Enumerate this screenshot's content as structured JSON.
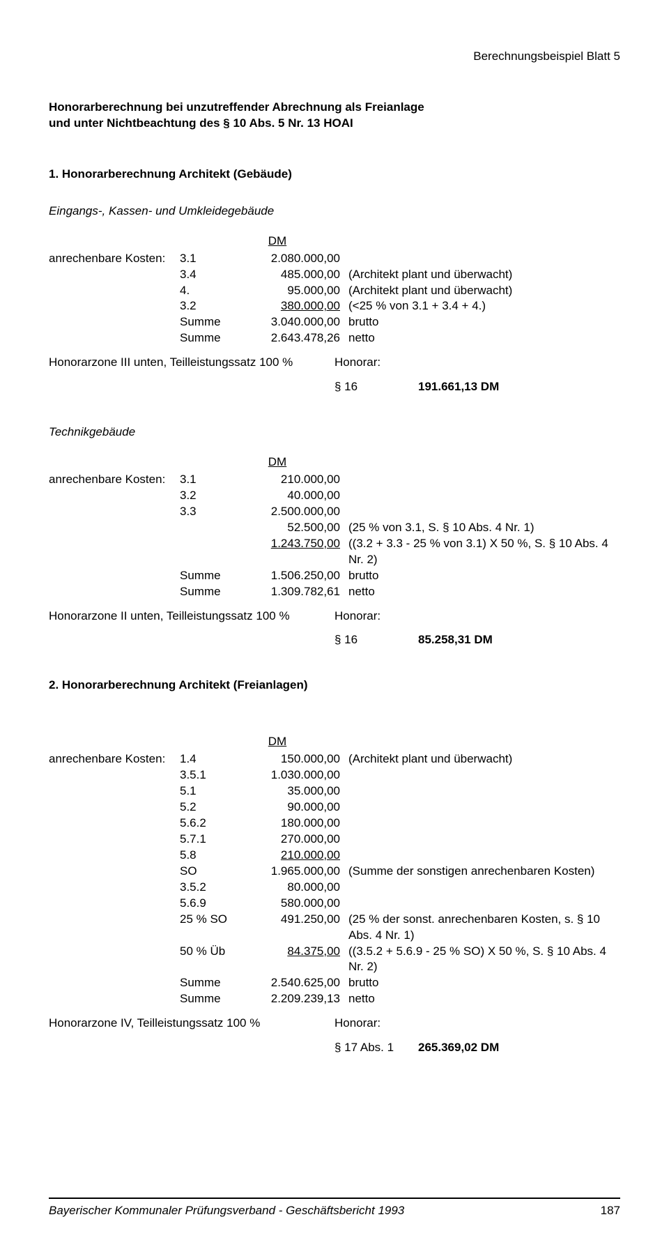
{
  "header": {
    "sheet": "Berechnungsbeispiel  Blatt 5"
  },
  "title": {
    "l1": "Honorarberechnung bei unzutreffender Abrechnung als Freianlage",
    "l2": "und unter Nichtbeachtung des § 10 Abs. 5 Nr. 13 HOAI"
  },
  "s1": {
    "head": "1. Honorarberechnung Architekt (Gebäude)",
    "dm": "DM",
    "label": "anrechenbare Kosten:",
    "sub1": {
      "title": "Eingangs-, Kassen- und Umkleidegebäude",
      "rows": [
        {
          "code": "3.1",
          "amount": "2.080.000,00",
          "note": "",
          "u": false
        },
        {
          "code": "3.4",
          "amount": "485.000,00",
          "note": "(Architekt plant und überwacht)",
          "u": false
        },
        {
          "code": "4.",
          "amount": "95.000,00",
          "note": "(Architekt plant und überwacht)",
          "u": false
        },
        {
          "code": "3.2",
          "amount": "380.000,00",
          "note": "(<25 % von 3.1 + 3.4 + 4.)",
          "u": true
        },
        {
          "code": "Summe",
          "amount": "3.040.000,00",
          "note": "brutto",
          "u": false
        },
        {
          "code": "Summe",
          "amount": "2.643.478,26",
          "note": "netto",
          "u": false
        }
      ],
      "hon": {
        "line": "Honorarzone III unten, Teilleistungssatz 100 %",
        "l2a": "Honorar:",
        "l2b": "§ 16",
        "l2c": "191.661,13 DM"
      }
    },
    "sub2": {
      "title": "Technikgebäude",
      "rows": [
        {
          "code": "3.1",
          "amount": "210.000,00",
          "note": "",
          "u": false
        },
        {
          "code": "3.2",
          "amount": "40.000,00",
          "note": "",
          "u": false
        },
        {
          "code": "3.3",
          "amount": "2.500.000,00",
          "note": "",
          "u": false
        },
        {
          "code": "",
          "amount": "52.500,00",
          "note": "(25 % von 3.1, S. § 10 Abs. 4 Nr. 1)",
          "u": false
        },
        {
          "code": "",
          "amount": "1.243.750,00",
          "note": "((3.2 + 3.3 - 25 % von 3.1) X 50 %, S. § 10 Abs. 4 Nr. 2)",
          "u": true
        },
        {
          "code": "Summe",
          "amount": "1.506.250,00",
          "note": "brutto",
          "u": false
        },
        {
          "code": "Summe",
          "amount": "1.309.782,61",
          "note": "netto",
          "u": false
        }
      ],
      "hon": {
        "line": "Honorarzone II unten, Teilleistungssatz 100 %",
        "l2a": "Honorar:",
        "l2b": "§ 16",
        "l2c": "85.258,31 DM"
      }
    }
  },
  "s2": {
    "head": "2. Honorarberechnung Architekt (Freianlagen)",
    "dm": "DM",
    "label": "anrechenbare Kosten:",
    "rows": [
      {
        "code": "1.4",
        "amount": "150.000,00",
        "note": "(Architekt plant und überwacht)",
        "u": false
      },
      {
        "code": "3.5.1",
        "amount": "1.030.000,00",
        "note": "",
        "u": false
      },
      {
        "code": "5.1",
        "amount": "35.000,00",
        "note": "",
        "u": false
      },
      {
        "code": "5.2",
        "amount": "90.000,00",
        "note": "",
        "u": false
      },
      {
        "code": "5.6.2",
        "amount": "180.000,00",
        "note": "",
        "u": false
      },
      {
        "code": "5.7.1",
        "amount": "270.000,00",
        "note": "",
        "u": false
      },
      {
        "code": "5.8",
        "amount": "210.000,00",
        "note": "",
        "u": true
      },
      {
        "code": "SO",
        "amount": "1.965.000,00",
        "note": "(Summe der sonstigen anrechenbaren Kosten)",
        "u": false
      },
      {
        "code": "3.5.2",
        "amount": "80.000,00",
        "note": "",
        "u": false
      },
      {
        "code": "5.6.9",
        "amount": "580.000,00",
        "note": "",
        "u": false
      },
      {
        "code": "25 % SO",
        "amount": "491.250,00",
        "note": "(25 % der sonst. anrechenbaren Kosten, s. § 10 Abs. 4 Nr. 1)",
        "u": false
      },
      {
        "code": "50 % Üb",
        "amount": "84.375,00",
        "note": "((3.5.2 + 5.6.9 - 25 % SO) X 50 %, S. § 10 Abs. 4 Nr. 2)",
        "u": true
      },
      {
        "code": "Summe",
        "amount": "2.540.625,00",
        "note": "brutto",
        "u": false
      },
      {
        "code": "Summe",
        "amount": "2.209.239,13",
        "note": "netto",
        "u": false
      }
    ],
    "hon": {
      "line": "Honorarzone IV, Teilleistungssatz 100 %",
      "l2a": "Honorar:",
      "l2b": "§ 17 Abs. 1",
      "l2c": "265.369,02 DM"
    }
  },
  "footer": {
    "left": "Bayerischer Kommunaler Prüfungsverband - Geschäftsbericht 1993",
    "page": "187"
  }
}
